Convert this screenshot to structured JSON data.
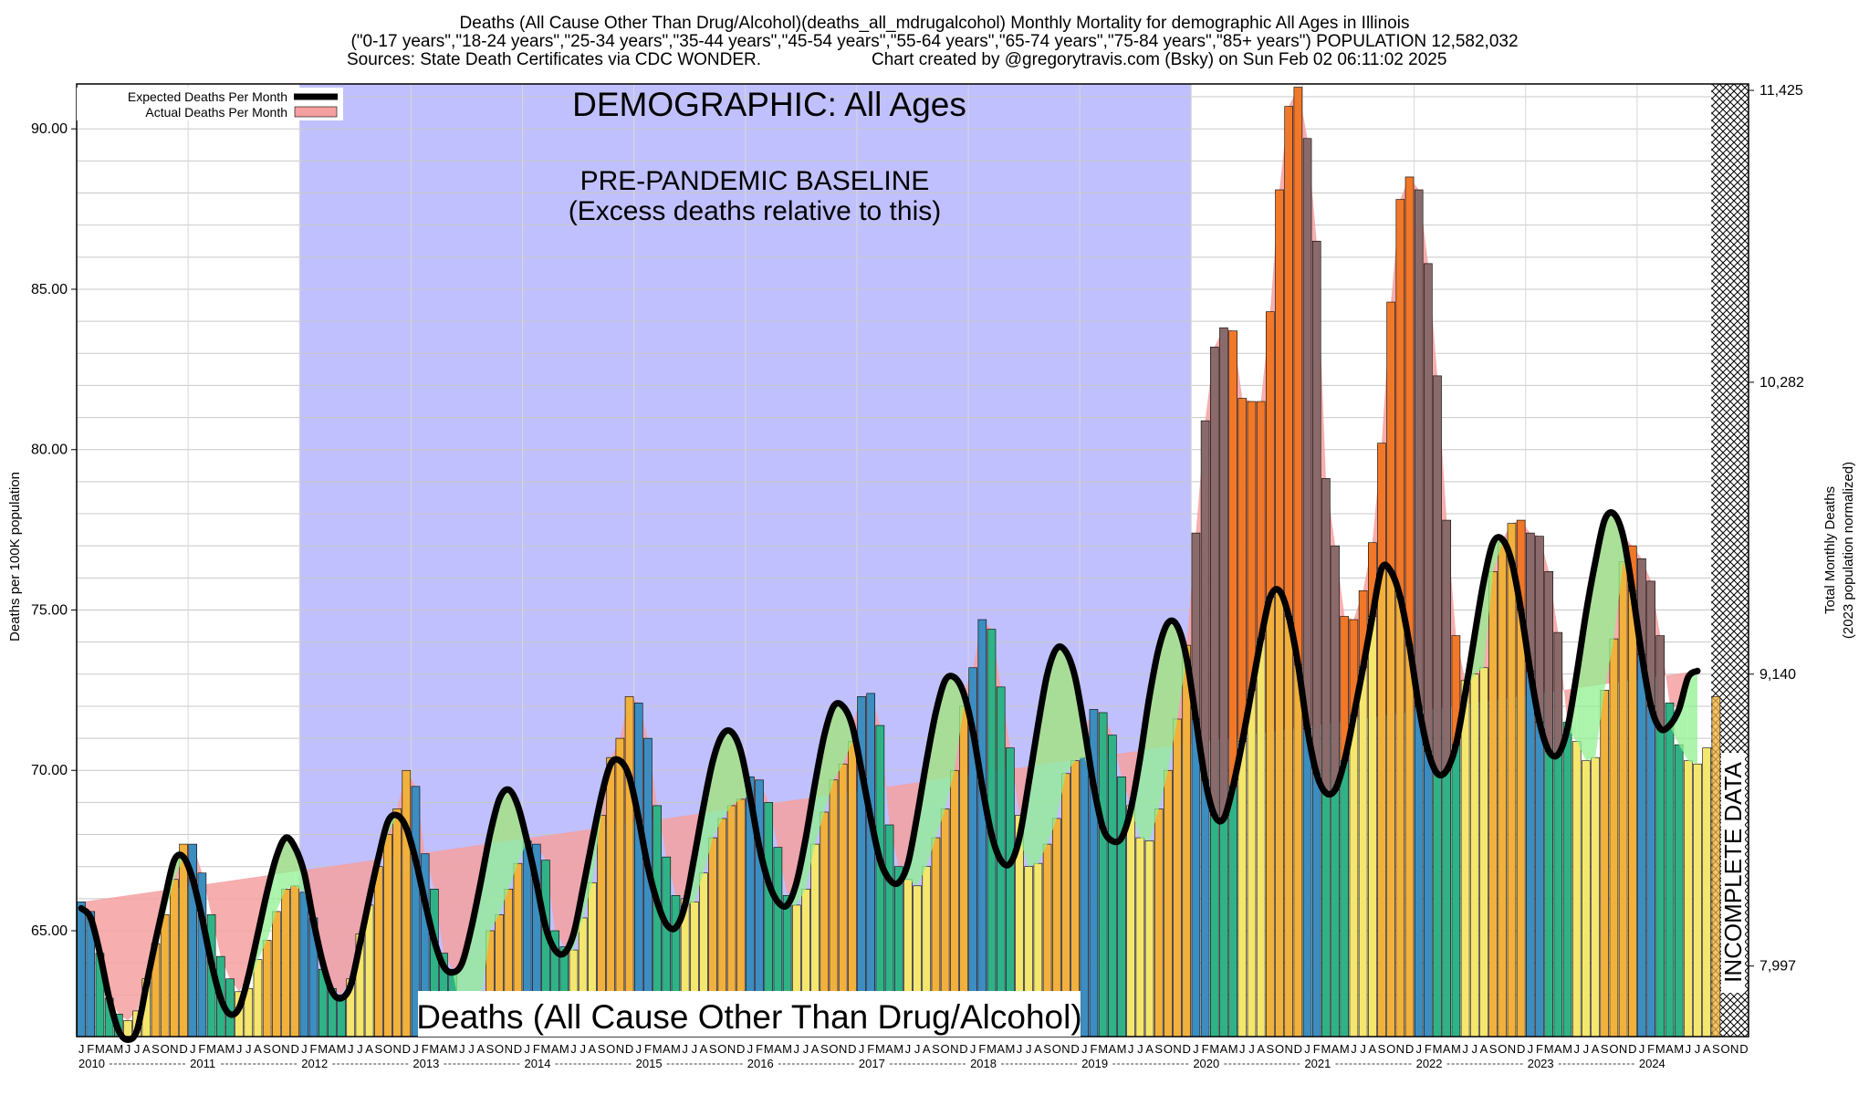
{
  "header": {
    "line1": "Deaths (All Cause Other Than Drug/Alcohol)(deaths_all_mdrugalcohol) Monthly Mortality for demographic All Ages in Illinois",
    "line2": "(\"0-17 years\",\"18-24 years\",\"25-34 years\",\"35-44 years\",\"45-54 years\",\"55-64 years\",\"65-74 years\",\"75-84 years\",\"85+ years\") POPULATION 12,582,032",
    "line3_sources": "Sources: State Death Certificates via CDC WONDER.",
    "line3_credit": "Chart created by @gregorytravis.com (Bsky) on Sun Feb 02 06:11:02 2025"
  },
  "annotations": {
    "demographic": "DEMOGRAPHIC: All Ages",
    "baseline_1": "PRE-PANDEMIC BASELINE",
    "baseline_2": "(Excess deaths relative to this)",
    "bottom_title": "Deaths (All Cause Other Than Drug/Alcohol)",
    "incomplete": "INCOMPLETE DATA"
  },
  "legend": {
    "expected": "Expected Deaths Per Month",
    "actual": "Actual Deaths Per Month"
  },
  "axes": {
    "ylabel_left": "Deaths per 100K population",
    "ylabel_right_1": "Total Monthly Deaths",
    "ylabel_right_2": "(2023 population normalized)"
  },
  "colors": {
    "baseline_region": "#c0c0ff",
    "winter_bar": "#3c8dc0",
    "spring_bar": "#2fb386",
    "summer_bar": "#f5e66e",
    "fall_bar": "#f1b13c",
    "excess_bar": "#f07828",
    "expected_line": "#000000",
    "actual_band": "#f4a0a0",
    "below_fill": "#90f090"
  },
  "chart_data": {
    "type": "bar",
    "start": "2010-01",
    "month_letters": [
      "J",
      "F",
      "M",
      "A",
      "M",
      "J",
      "J",
      "A",
      "S",
      "O",
      "N",
      "D"
    ],
    "years": [
      "2010",
      "2011",
      "2012",
      "2013",
      "2014",
      "2015",
      "2016",
      "2017",
      "2018",
      "2019",
      "2020",
      "2021",
      "2022",
      "2023",
      "2024"
    ],
    "baseline_period": [
      "2012-01",
      "2019-12"
    ],
    "incomplete_from": "2024-09",
    "ylim": [
      61.7,
      91.4
    ],
    "yticks": [
      65.0,
      70.0,
      75.0,
      80.0,
      85.0,
      90.0
    ],
    "ytick_labels": [
      "65.00",
      "70.00",
      "75.00",
      "80.00",
      "85.00",
      "90.00"
    ],
    "yticks_right": [
      63.9,
      73.0,
      82.1,
      91.2
    ],
    "ytick_labels_right": [
      "7,997",
      "9,140",
      "10,282",
      "11,425"
    ],
    "series": [
      {
        "name": "Actual Deaths Per Month",
        "values": [
          65.9,
          65.6,
          64.3,
          62.9,
          62.4,
          62.2,
          62.5,
          63.5,
          64.6,
          65.5,
          66.6,
          67.7,
          67.7,
          66.8,
          65.5,
          64.2,
          63.5,
          63.1,
          63.2,
          64.1,
          64.7,
          65.6,
          66.3,
          66.4,
          66.2,
          65.4,
          63.8,
          63.2,
          63.0,
          63.5,
          64.9,
          65.8,
          67.0,
          68.0,
          68.8,
          70.0,
          69.5,
          67.4,
          66.3,
          64.3,
          63.8,
          62.2,
          62.6,
          62.7,
          65.0,
          65.5,
          66.3,
          67.1,
          67.8,
          67.7,
          67.2,
          65.0,
          64.5,
          64.4,
          65.4,
          66.5,
          68.6,
          70.4,
          71.0,
          72.3,
          72.1,
          71.0,
          68.9,
          67.3,
          66.1,
          66.0,
          65.9,
          66.8,
          67.9,
          68.5,
          68.9,
          69.1,
          69.8,
          69.7,
          69.0,
          67.6,
          66.1,
          65.8,
          66.3,
          67.7,
          68.7,
          69.7,
          70.2,
          70.9,
          72.3,
          72.4,
          71.4,
          68.3,
          67.0,
          66.6,
          66.4,
          67.0,
          67.9,
          68.8,
          70.0,
          72.0,
          73.2,
          74.7,
          74.4,
          72.6,
          70.7,
          68.6,
          67.0,
          67.1,
          67.7,
          68.5,
          69.9,
          70.3,
          70.4,
          71.9,
          71.8,
          71.1,
          69.8,
          68.9,
          67.9,
          67.8,
          68.8,
          70.0,
          71.6,
          73.9,
          77.4,
          80.9,
          83.2,
          83.8,
          83.7,
          81.6,
          81.5,
          81.5,
          84.3,
          88.1,
          90.7,
          91.3,
          89.7,
          86.5,
          79.1,
          77.0,
          74.8,
          74.7,
          75.6,
          77.1,
          80.2,
          84.6,
          87.8,
          88.5,
          88.1,
          85.8,
          82.3,
          77.8,
          74.2,
          72.8,
          73.0,
          73.2,
          76.2,
          77.1,
          77.7,
          77.8,
          77.4,
          77.3,
          76.2,
          74.3,
          71.5,
          70.9,
          70.3,
          70.4,
          72.5,
          74.1,
          76.5,
          77.0,
          76.6,
          75.9,
          74.2,
          72.1,
          70.8,
          70.3,
          70.2,
          70.7,
          72.3
        ]
      },
      {
        "name": "Expected Deaths Per Month",
        "values": [
          65.7,
          65.4,
          64.3,
          62.9,
          61.9,
          61.6,
          61.9,
          63.3,
          64.7,
          66.0,
          67.2,
          67.3,
          66.6,
          65.4,
          64.0,
          62.9,
          62.4,
          62.6,
          63.6,
          64.9,
          66.2,
          67.3,
          67.9,
          67.6,
          66.8,
          65.3,
          64.0,
          63.1,
          62.9,
          63.3,
          64.6,
          66.0,
          67.3,
          68.4,
          68.6,
          68.2,
          67.2,
          65.9,
          64.7,
          63.9,
          63.7,
          64.0,
          65.1,
          66.5,
          68.0,
          69.1,
          69.4,
          68.9,
          67.8,
          66.5,
          65.1,
          64.4,
          64.3,
          64.9,
          66.3,
          67.8,
          69.2,
          70.2,
          70.3,
          69.8,
          68.5,
          67.0,
          65.9,
          65.2,
          65.1,
          65.8,
          67.3,
          68.9,
          70.3,
          71.1,
          71.2,
          70.6,
          69.2,
          67.6,
          66.5,
          65.9,
          65.8,
          66.5,
          67.9,
          69.6,
          71.1,
          72.0,
          72.0,
          71.4,
          70.0,
          68.5,
          67.2,
          66.6,
          66.5,
          67.1,
          68.6,
          70.3,
          71.8,
          72.8,
          72.9,
          72.4,
          71.2,
          69.5,
          68.0,
          67.2,
          67.1,
          67.9,
          69.6,
          71.4,
          73.0,
          73.8,
          73.7,
          72.9,
          71.3,
          69.5,
          68.2,
          67.8,
          67.9,
          68.8,
          70.4,
          72.3,
          73.8,
          74.6,
          74.5,
          73.5,
          71.6,
          69.7,
          68.6,
          68.5,
          69.5,
          70.9,
          72.5,
          74.1,
          75.4,
          75.6,
          74.8,
          73.3,
          71.3,
          69.9,
          69.3,
          69.4,
          70.3,
          71.7,
          73.2,
          74.8,
          76.3,
          76.2,
          75.4,
          73.9,
          72.0,
          70.6,
          69.9,
          70.0,
          70.8,
          72.4,
          74.2,
          75.9,
          77.1,
          77.2,
          76.5,
          75.0,
          73.1,
          71.5,
          70.6,
          70.5,
          71.3,
          73.0,
          74.9,
          76.5,
          77.8,
          78.0,
          77.3,
          75.6,
          73.6,
          72.0,
          71.3,
          71.4,
          71.9,
          72.9,
          73.1
        ]
      }
    ]
  }
}
